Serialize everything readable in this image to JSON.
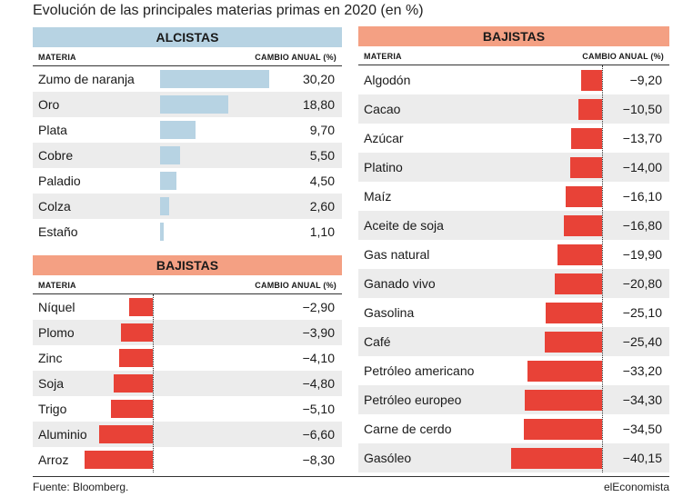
{
  "title": "Evolución de las principales materias primas en 2020 (en %)",
  "source": "Fuente: Bloomberg.",
  "brand": "elEconomista",
  "colors": {
    "up": "#b7d3e3",
    "up_head": "#b7d3e3",
    "down": "#e84237",
    "down_head": "#f4a083"
  },
  "chart_data": [
    {
      "type": "bar",
      "title": "ALCISTAS",
      "col_name": "MATERIA",
      "col_value": "CAMBIO ANUAL (%)",
      "categories": [
        "Zumo de naranja",
        "Oro",
        "Plata",
        "Cobre",
        "Paladio",
        "Colza",
        "Estaño"
      ],
      "values": [
        30.2,
        18.8,
        9.7,
        5.5,
        4.5,
        2.6,
        1.1
      ],
      "labels": [
        "30,20",
        "18,80",
        "9,70",
        "5,50",
        "4,50",
        "2,60",
        "1,10"
      ]
    },
    {
      "type": "bar",
      "title": "BAJISTAS",
      "col_name": "MATERIA",
      "col_value": "CAMBIO ANUAL (%)",
      "categories": [
        "Níquel",
        "Plomo",
        "Zinc",
        "Soja",
        "Trigo",
        "Aluminio",
        "Arroz"
      ],
      "values": [
        -2.9,
        -3.9,
        -4.1,
        -4.8,
        -5.1,
        -6.6,
        -8.3
      ],
      "labels": [
        "−2,90",
        "−3,90",
        "−4,10",
        "−4,80",
        "−5,10",
        "−6,60",
        "−8,30"
      ]
    },
    {
      "type": "bar",
      "title": "BAJISTAS",
      "col_name": "MATERIA",
      "col_value": "CAMBIO ANUAL (%)",
      "categories": [
        "Algodón",
        "Cacao",
        "Azúcar",
        "Platino",
        "Maíz",
        "Aceite de soja",
        "Gas natural",
        "Ganado vivo",
        "Gasolina",
        "Café",
        "Petróleo americano",
        "Petróleo europeo",
        "Carne de cerdo",
        "Gasóleo"
      ],
      "values": [
        -9.2,
        -10.5,
        -13.7,
        -14.0,
        -16.1,
        -16.8,
        -19.9,
        -20.8,
        -25.1,
        -25.4,
        -33.2,
        -34.3,
        -34.5,
        -40.15
      ],
      "labels": [
        "−9,20",
        "−10,50",
        "−13,70",
        "−14,00",
        "−16,10",
        "−16,80",
        "−19,90",
        "−20,80",
        "−25,10",
        "−25,40",
        "−33,20",
        "−34,30",
        "−34,50",
        "−40,15"
      ]
    }
  ]
}
